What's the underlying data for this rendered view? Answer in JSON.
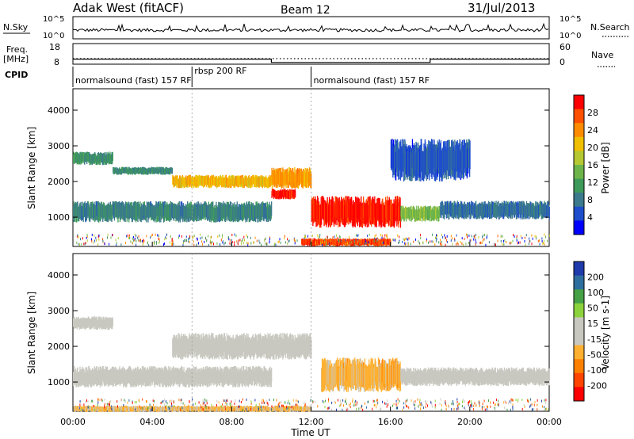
{
  "header": {
    "station": "Adak West (fitACF)",
    "beam": "Beam 12",
    "date": "31/Jul/2013"
  },
  "top_panels": {
    "nsky_label": "N.Sky",
    "nsky_ticks": [
      "10^5",
      "10^0"
    ],
    "nsearch_label": "N.Search",
    "nsearch_ticks": [
      "10^5",
      "10^0"
    ],
    "freq_label": "Freq.",
    "freq_unit": "[MHz]",
    "freq_ticks": [
      "18",
      "8"
    ],
    "nave_label": "Nave",
    "nave_ticks": [
      "60",
      "0"
    ],
    "cpid_label": "CPID",
    "cpid_segments": [
      {
        "label": "normalsound (fast) 157 RF",
        "start_hour": 0,
        "end_hour": 6
      },
      {
        "label": "rbsp 200 RF",
        "start_hour": 6,
        "end_hour": 12
      },
      {
        "label": "normalsound (fast) 157 RF",
        "start_hour": 12,
        "end_hour": 24
      }
    ],
    "freq_steps": [
      {
        "start_hour": 0,
        "end_hour": 10,
        "mhz": 12.0
      },
      {
        "start_hour": 10,
        "end_hour": 18,
        "mhz": 10.4
      },
      {
        "start_hour": 18,
        "end_hour": 24,
        "mhz": 12.0
      }
    ]
  },
  "x_axis": {
    "label": "Time UT",
    "ticks": [
      "00:00",
      "04:00",
      "08:00",
      "12:00",
      "16:00",
      "20:00",
      "00:00"
    ]
  },
  "chart_data": [
    {
      "type": "heatmap",
      "name": "power",
      "ylabel": "Slant Range [km]",
      "xlim_hours": [
        0,
        24
      ],
      "ylim_km": [
        180,
        4600
      ],
      "yticks": [
        "1000",
        "2000",
        "3000",
        "4000"
      ],
      "colorbar": {
        "label": "Power [dB]",
        "ticks": [
          "28",
          "24",
          "20",
          "16",
          "12",
          "8",
          "4"
        ],
        "range": [
          0,
          30
        ]
      },
      "colors": [
        "#0000ff",
        "#1e4ecc",
        "#3b7a8c",
        "#3e9a5a",
        "#6db44b",
        "#b5c832",
        "#f0c000",
        "#ff8c00",
        "#ff5000",
        "#ff0000"
      ],
      "bands": [
        {
          "start_hour": 0.0,
          "end_hour": 2.0,
          "center_km": 2650,
          "width_km": 250,
          "value": 10
        },
        {
          "start_hour": 2.0,
          "end_hour": 5.0,
          "center_km": 2300,
          "width_km": 150,
          "value": 9
        },
        {
          "start_hour": 5.0,
          "end_hour": 10.0,
          "center_km": 2000,
          "width_km": 250,
          "value": 20
        },
        {
          "start_hour": 10.0,
          "end_hour": 12.0,
          "center_km": 2100,
          "width_km": 400,
          "value": 22
        },
        {
          "start_hour": 10.0,
          "end_hour": 11.2,
          "center_km": 1650,
          "width_km": 200,
          "value": 28
        },
        {
          "start_hour": 0.0,
          "end_hour": 10.0,
          "center_km": 1150,
          "width_km": 400,
          "value": 8
        },
        {
          "start_hour": 12.0,
          "end_hour": 16.5,
          "center_km": 1150,
          "width_km": 600,
          "value": 28
        },
        {
          "start_hour": 16.5,
          "end_hour": 18.5,
          "center_km": 1100,
          "width_km": 300,
          "value": 14
        },
        {
          "start_hour": 18.5,
          "end_hour": 24.0,
          "center_km": 1200,
          "width_km": 350,
          "value": 7
        },
        {
          "start_hour": 11.5,
          "end_hour": 16.0,
          "center_km": 300,
          "width_km": 150,
          "value": 26
        },
        {
          "start_hour": 16.0,
          "end_hour": 20.0,
          "center_km": 2600,
          "width_km": 800,
          "value": 5
        }
      ]
    },
    {
      "type": "heatmap",
      "name": "velocity",
      "ylabel": "Slant Range [km]",
      "xlim_hours": [
        0,
        24
      ],
      "ylim_km": [
        180,
        4600
      ],
      "yticks": [
        "1000",
        "2000",
        "3000",
        "4000"
      ],
      "colorbar": {
        "label": "Velocity [m s-1]",
        "ticks": [
          "200",
          "100",
          "50",
          "15",
          "-15",
          "-50",
          "-100",
          "-200"
        ],
        "range": [
          -250,
          250
        ]
      },
      "colors": [
        "#ff0000",
        "#ff4500",
        "#ff8000",
        "#ffb030",
        "#c8c8c0",
        "#c8c8c0",
        "#8cd23c",
        "#46a046",
        "#2e6e9e",
        "#1f3aaa"
      ],
      "bands": [
        {
          "start_hour": 0.0,
          "end_hour": 2.0,
          "center_km": 2650,
          "width_km": 250,
          "value": 0
        },
        {
          "start_hour": 5.0,
          "end_hour": 12.0,
          "center_km": 2000,
          "width_km": 500,
          "value": 0
        },
        {
          "start_hour": 0.0,
          "end_hour": 10.0,
          "center_km": 1150,
          "width_km": 400,
          "value": 0
        },
        {
          "start_hour": 12.5,
          "end_hour": 16.5,
          "center_km": 1200,
          "width_km": 650,
          "value": -70
        },
        {
          "start_hour": 16.5,
          "end_hour": 24.0,
          "center_km": 1150,
          "width_km": 350,
          "value": 0
        },
        {
          "start_hour": 0.0,
          "end_hour": 12.0,
          "center_km": 250,
          "width_km": 120,
          "value": -60
        }
      ]
    }
  ]
}
